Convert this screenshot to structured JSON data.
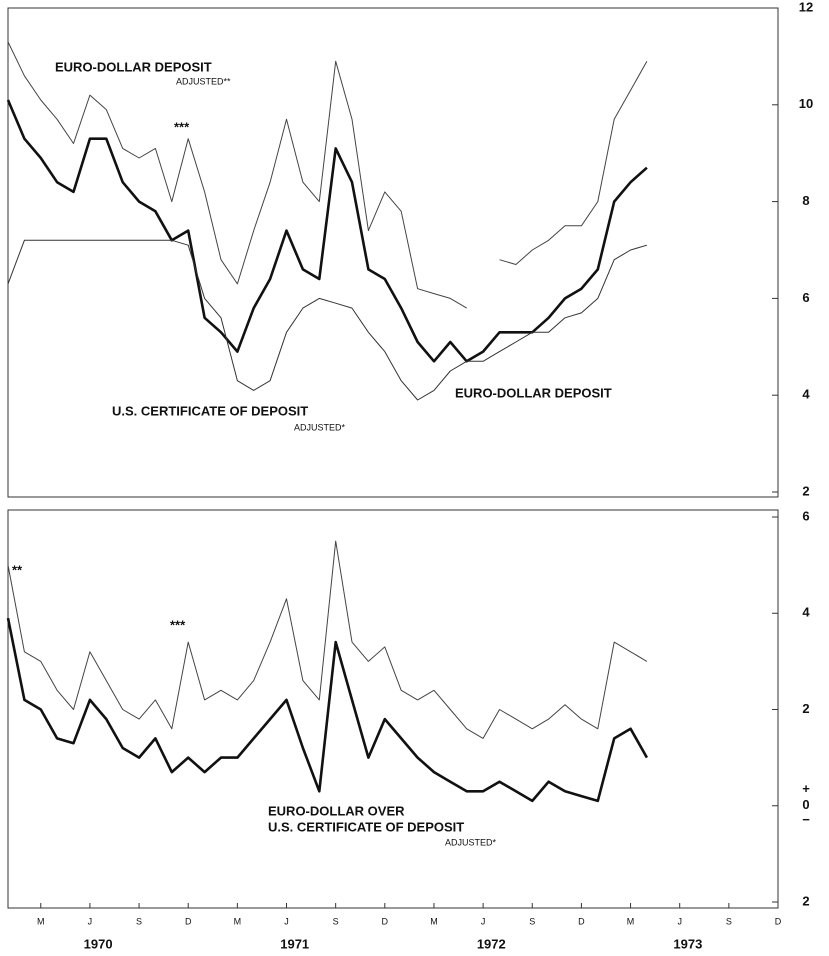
{
  "chart_data": [
    {
      "type": "line",
      "xlim": [
        "1970-01",
        "1973-12"
      ],
      "x": [
        "1970-01",
        "1970-02",
        "1970-03",
        "1970-04",
        "1970-05",
        "1970-06",
        "1970-07",
        "1970-08",
        "1970-09",
        "1970-10",
        "1970-11",
        "1970-12",
        "1971-01",
        "1971-02",
        "1971-03",
        "1971-04",
        "1971-05",
        "1971-06",
        "1971-07",
        "1971-08",
        "1971-09",
        "1971-10",
        "1971-11",
        "1971-12",
        "1972-01",
        "1972-02",
        "1972-03",
        "1972-04",
        "1972-05",
        "1972-06",
        "1972-07",
        "1972-08",
        "1972-09",
        "1972-10",
        "1972-11",
        "1972-12",
        "1973-01",
        "1973-02",
        "1973-03",
        "1973-04"
      ],
      "ylim": [
        2,
        12
      ],
      "yticks": [
        2,
        4,
        6,
        8,
        10,
        12
      ],
      "series": [
        {
          "color": "#444444",
          "linewidth": 1,
          "values": [
            11.3,
            10.6,
            10.1,
            9.7,
            9.2,
            10.2,
            9.9,
            9.1,
            8.9,
            9.1,
            8.0,
            9.3,
            8.2,
            6.8,
            6.3,
            7.4,
            8.4,
            9.7,
            8.4,
            8.0,
            10.9,
            9.7,
            7.4,
            8.2,
            7.8,
            6.2,
            6.1,
            6.0,
            5.8,
            null,
            6.8,
            6.7,
            7.0,
            7.2,
            7.5,
            7.5,
            8.0,
            9.7,
            10.3,
            10.9
          ]
        },
        {
          "color": "#111111",
          "linewidth": 2.6,
          "values": [
            10.1,
            9.3,
            8.9,
            8.4,
            8.2,
            9.3,
            9.3,
            8.4,
            8.0,
            7.8,
            7.2,
            7.4,
            5.6,
            5.3,
            4.9,
            5.8,
            6.4,
            7.4,
            6.6,
            6.4,
            9.1,
            8.4,
            6.6,
            6.4,
            5.8,
            5.1,
            4.7,
            5.1,
            4.7,
            4.9,
            5.3,
            5.3,
            5.3,
            5.6,
            6.0,
            6.2,
            6.6,
            8.0,
            8.4,
            8.7
          ]
        },
        {
          "color": "#333333",
          "linewidth": 1,
          "values": [
            6.3,
            7.2,
            7.2,
            7.2,
            7.2,
            7.2,
            7.2,
            7.2,
            7.2,
            7.2,
            7.2,
            7.1,
            6.0,
            5.6,
            4.3,
            4.1,
            4.3,
            5.3,
            5.8,
            6.0,
            5.9,
            5.8,
            5.3,
            4.9,
            4.3,
            3.9,
            4.1,
            4.5,
            4.7,
            4.7,
            4.9,
            5.1,
            5.3,
            5.3,
            5.6,
            5.7,
            6.0,
            6.8,
            7.0,
            7.1
          ]
        }
      ],
      "annotations": [
        "EURO-DOLLAR DEPOSIT",
        "ADJUSTED**",
        "***",
        "EURO-DOLLAR DEPOSIT",
        "U.S. CERTIFICATE OF DEPOSIT",
        "ADJUSTED*"
      ]
    },
    {
      "type": "line",
      "xlim": [
        "1970-01",
        "1973-12"
      ],
      "x": [
        "1970-01",
        "1970-02",
        "1970-03",
        "1970-04",
        "1970-05",
        "1970-06",
        "1970-07",
        "1970-08",
        "1970-09",
        "1970-10",
        "1970-11",
        "1970-12",
        "1971-01",
        "1971-02",
        "1971-03",
        "1971-04",
        "1971-05",
        "1971-06",
        "1971-07",
        "1971-08",
        "1971-09",
        "1971-10",
        "1971-11",
        "1971-12",
        "1972-01",
        "1972-02",
        "1972-03",
        "1972-04",
        "1972-05",
        "1972-06",
        "1972-07",
        "1972-08",
        "1972-09",
        "1972-10",
        "1972-11",
        "1972-12",
        "1973-01",
        "1973-02",
        "1973-03",
        "1973-04"
      ],
      "ylim": [
        -2,
        6
      ],
      "yticks": [
        {
          "value": -2,
          "label": "2"
        },
        0,
        2,
        4,
        6
      ],
      "plus_sign": "+",
      "minus_sign": "−",
      "xticks": [
        {
          "value": "1970-03",
          "label": "M"
        },
        {
          "value": "1970-06",
          "label": "J"
        },
        {
          "value": "1970-09",
          "label": "S"
        },
        {
          "value": "1970-12",
          "label": "D"
        },
        {
          "value": "1971-03",
          "label": "M"
        },
        {
          "value": "1971-06",
          "label": "J"
        },
        {
          "value": "1971-09",
          "label": "S"
        },
        {
          "value": "1971-12",
          "label": "D"
        },
        {
          "value": "1972-03",
          "label": "M"
        },
        {
          "value": "1972-06",
          "label": "J"
        },
        {
          "value": "1972-09",
          "label": "S"
        },
        {
          "value": "1972-12",
          "label": "D"
        },
        {
          "value": "1973-03",
          "label": "M"
        },
        {
          "value": "1973-06",
          "label": "J"
        },
        {
          "value": "1973-09",
          "label": "S"
        },
        {
          "value": "1973-12",
          "label": "D"
        }
      ],
      "years": [
        "1970",
        "1971",
        "1972",
        "1973"
      ],
      "series": [
        {
          "color": "#444444",
          "linewidth": 1,
          "values": [
            5.0,
            3.2,
            3.0,
            2.4,
            2.0,
            3.2,
            2.6,
            2.0,
            1.8,
            2.2,
            1.6,
            3.4,
            2.2,
            2.4,
            2.2,
            2.6,
            3.4,
            4.3,
            2.6,
            2.2,
            5.5,
            3.4,
            3.0,
            3.3,
            2.4,
            2.2,
            2.4,
            2.0,
            1.6,
            1.4,
            2.0,
            1.8,
            1.6,
            1.8,
            2.1,
            1.8,
            1.6,
            3.4,
            3.2,
            3.0
          ]
        },
        {
          "color": "#111111",
          "linewidth": 2.6,
          "values": [
            3.9,
            2.2,
            2.0,
            1.4,
            1.3,
            2.2,
            1.8,
            1.2,
            1.0,
            1.4,
            0.7,
            1.0,
            0.7,
            1.0,
            1.0,
            1.4,
            1.8,
            2.2,
            1.2,
            0.3,
            3.4,
            2.2,
            1.0,
            1.8,
            1.4,
            1.0,
            0.7,
            0.5,
            0.3,
            0.3,
            0.5,
            0.3,
            0.1,
            0.5,
            0.3,
            0.2,
            0.1,
            1.4,
            1.6,
            1.0
          ]
        }
      ],
      "annotations": [
        "**",
        "***",
        "EURO-DOLLAR OVER",
        "U.S. CERTIFICATE OF DEPOSIT",
        "ADJUSTED*"
      ]
    }
  ]
}
